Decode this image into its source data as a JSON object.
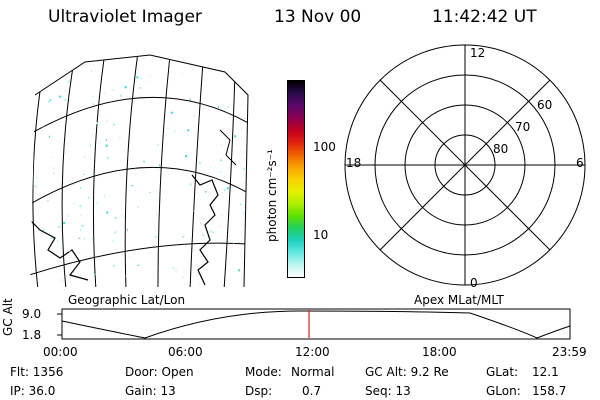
{
  "header": {
    "title": "Ultraviolet Imager",
    "date": "13 Nov 00",
    "time": "11:42:42 UT"
  },
  "colorbar": {
    "unit_label": "photon cm⁻²s⁻¹",
    "ticks": [
      "100",
      "10"
    ],
    "colors": [
      "#000000",
      "#2a0a4a",
      "#5a0a6a",
      "#8a0050",
      "#c00020",
      "#e02010",
      "#f06000",
      "#f8a000",
      "#f8d000",
      "#e8f000",
      "#b0f000",
      "#60e000",
      "#20d060",
      "#20d0c0",
      "#60e8e0",
      "#c0f4f0",
      "#ffffff"
    ]
  },
  "map": {
    "label": "Geographic Lat/Lon",
    "emission_color": "#40d8c8"
  },
  "polar": {
    "label": "Apex MLat/MLT",
    "mlt_labels": {
      "top": "12",
      "left": "18",
      "right": "6",
      "bottom": "0"
    },
    "mlat_labels": [
      "60",
      "70",
      "80"
    ]
  },
  "orbit_plot": {
    "y_axis_title": "GC Alt",
    "y_ticks": [
      "9.0",
      "1.8"
    ],
    "x_ticks": [
      "00:00",
      "06:00",
      "12:00",
      "18:00",
      "23:59"
    ],
    "current_marker_color": "#e02020"
  },
  "status": {
    "flt": "Flt: 1356",
    "ip": "IP: 36.0",
    "door": "Door: Open",
    "gain": "Gain: 13",
    "mode_label": "Mode:",
    "mode_value": "Normal",
    "dsp_label": "Dsp:",
    "dsp_value": "0.7",
    "gc_alt": "GC Alt: 9.2 Re",
    "seq": "Seq: 13",
    "glat_label": "GLat:",
    "glat_value": "12.1",
    "glon_label": "GLon:",
    "glon_value": "158.7"
  }
}
